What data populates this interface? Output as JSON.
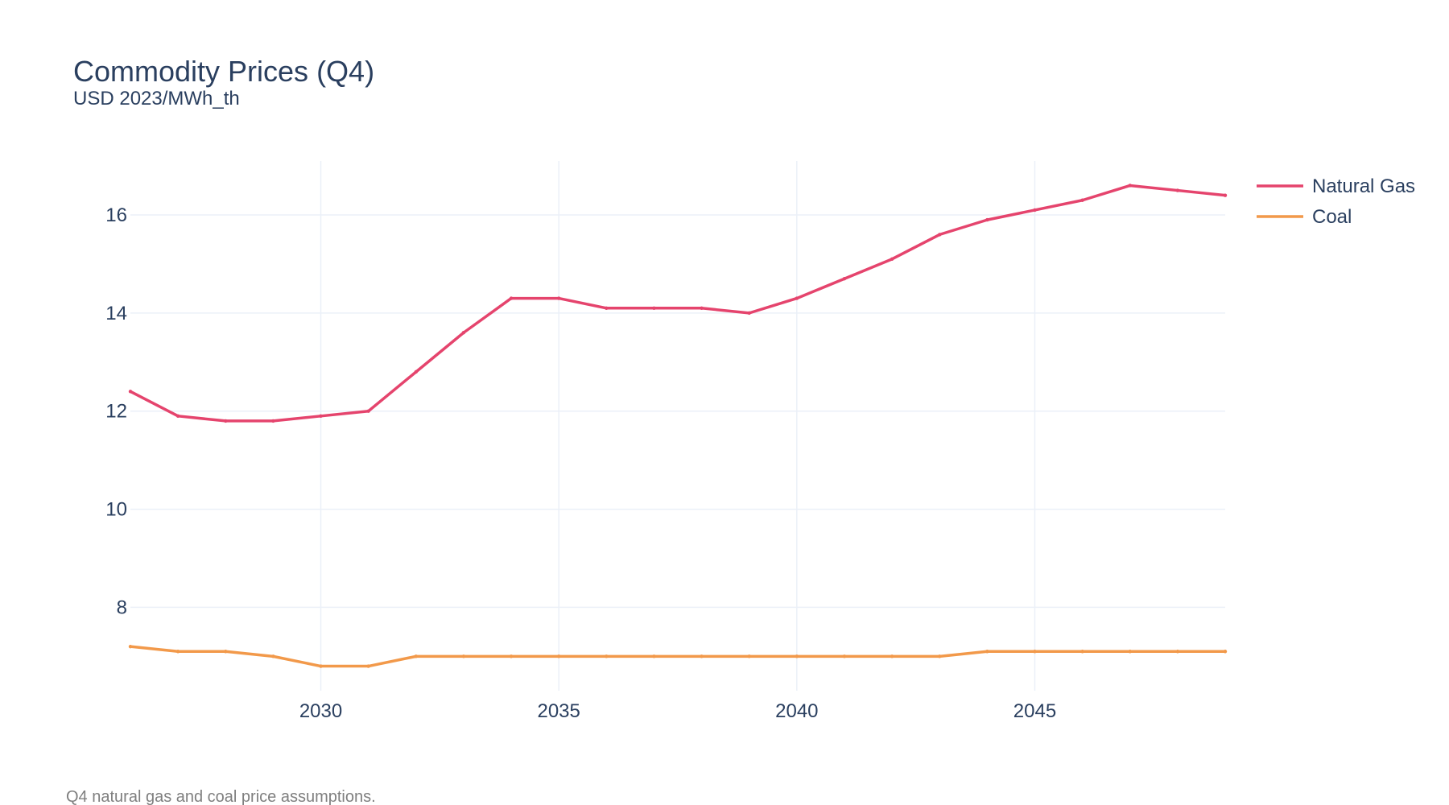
{
  "chart_data": {
    "type": "line",
    "title": "Commodity Prices (Q4)",
    "subtitle": "USD 2023/MWh_th",
    "caption": "Q4 natural gas and coal price assumptions.",
    "xlabel": "",
    "ylabel": "",
    "xlim": [
      2026,
      2049
    ],
    "ylim": [
      6.3,
      17.1
    ],
    "x_ticks": [
      2030,
      2035,
      2040,
      2045
    ],
    "y_ticks": [
      8,
      10,
      12,
      14,
      16
    ],
    "grid": true,
    "legend_position": "top-right",
    "x": [
      2026,
      2027,
      2028,
      2029,
      2030,
      2031,
      2032,
      2033,
      2034,
      2035,
      2036,
      2037,
      2038,
      2039,
      2040,
      2041,
      2042,
      2043,
      2044,
      2045,
      2046,
      2047,
      2048,
      2049
    ],
    "series": [
      {
        "name": "Natural Gas",
        "color": "#e5446d",
        "values": [
          12.4,
          11.9,
          11.8,
          11.8,
          11.9,
          12.0,
          12.8,
          13.6,
          14.3,
          14.3,
          14.1,
          14.1,
          14.1,
          14.0,
          14.3,
          14.7,
          15.1,
          15.6,
          15.9,
          16.1,
          16.3,
          16.6,
          16.5,
          16.4
        ]
      },
      {
        "name": "Coal",
        "color": "#f2994a",
        "values": [
          7.2,
          7.1,
          7.1,
          7.0,
          6.8,
          6.8,
          7.0,
          7.0,
          7.0,
          7.0,
          7.0,
          7.0,
          7.0,
          7.0,
          7.0,
          7.0,
          7.0,
          7.0,
          7.1,
          7.1,
          7.1,
          7.1,
          7.1,
          7.1
        ]
      }
    ]
  }
}
